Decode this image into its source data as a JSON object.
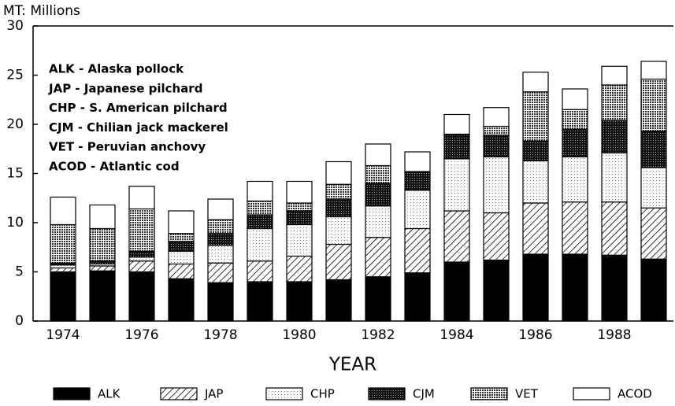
{
  "chart_data": {
    "type": "stacked-bar",
    "ylabel": "MT: Millions",
    "xlabel": "YEAR",
    "annotations": [
      "ALK - Alaska pollock",
      "JAP - Japanese pilchard",
      "CHP - S. American pilchard",
      "CJM - Chilian jack mackerel",
      "VET - Peruvian anchovy",
      "ACOD - Atlantic cod"
    ],
    "categories": [
      "1974",
      null,
      "1976",
      null,
      "1978",
      null,
      "1980",
      null,
      "1982",
      null,
      "1984",
      null,
      "1986",
      null,
      "1988",
      null
    ],
    "series": [
      {
        "name": "ALK",
        "color": "#000000",
        "pattern": "solid",
        "values": [
          5.0,
          5.1,
          5.0,
          4.3,
          3.9,
          4.0,
          4.0,
          4.2,
          4.5,
          4.9,
          6.0,
          6.2,
          6.8,
          6.8,
          6.7,
          6.3
        ]
      },
      {
        "name": "JAP",
        "color": "#000000",
        "pattern": "hatch",
        "values": [
          0.4,
          0.5,
          1.1,
          1.5,
          2.0,
          2.1,
          2.6,
          3.6,
          4.0,
          4.5,
          5.2,
          4.8,
          5.2,
          5.3,
          5.4,
          5.2
        ]
      },
      {
        "name": "CHP",
        "color": "#000000",
        "pattern": "dots",
        "values": [
          0.3,
          0.2,
          0.4,
          1.3,
          1.8,
          3.3,
          3.2,
          2.8,
          3.2,
          3.9,
          5.3,
          5.7,
          4.3,
          4.6,
          5.0,
          4.1
        ]
      },
      {
        "name": "CJM",
        "color": "#000000",
        "pattern": "dense",
        "values": [
          0.2,
          0.3,
          0.6,
          1.0,
          1.2,
          1.4,
          1.4,
          1.8,
          2.3,
          1.8,
          2.4,
          2.2,
          2.0,
          2.8,
          3.3,
          3.7
        ]
      },
      {
        "name": "VET",
        "color": "#000000",
        "pattern": "stipple",
        "values": [
          3.9,
          3.3,
          4.3,
          0.8,
          1.4,
          1.4,
          0.8,
          1.5,
          1.8,
          0.1,
          0.1,
          0.9,
          5.0,
          2.0,
          3.6,
          5.3
        ]
      },
      {
        "name": "ACOD",
        "color": "#000000",
        "pattern": "none",
        "values": [
          2.8,
          2.4,
          2.3,
          2.3,
          2.1,
          2.0,
          2.2,
          2.3,
          2.2,
          2.0,
          2.0,
          1.9,
          2.0,
          2.1,
          1.9,
          1.8
        ]
      }
    ],
    "ylim": [
      0,
      30
    ],
    "yticks": [
      0,
      5,
      10,
      15,
      20,
      25,
      30
    ],
    "grid": false
  }
}
